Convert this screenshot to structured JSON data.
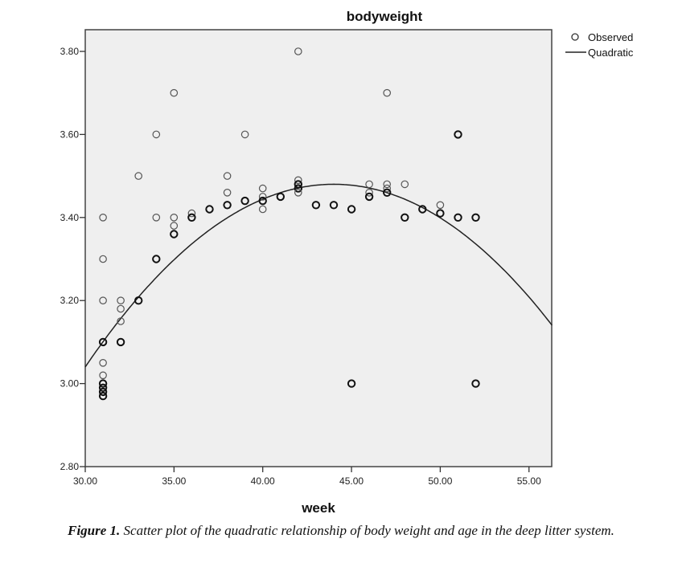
{
  "chart_data": {
    "type": "scatter",
    "title": "bodyweight",
    "xlabel": "week",
    "ylabel": "",
    "xlim": [
      30,
      56.3
    ],
    "ylim": [
      2.8,
      3.85
    ],
    "xticks": [
      30,
      35,
      40,
      45,
      50,
      55
    ],
    "xtick_labels": [
      "30.00",
      "35.00",
      "40.00",
      "45.00",
      "50.00",
      "55.00"
    ],
    "yticks": [
      2.8,
      3.0,
      3.2,
      3.4,
      3.6,
      3.8
    ],
    "ytick_labels": [
      "2.80",
      "3.00",
      "3.20",
      "3.40",
      "3.60",
      "3.80"
    ],
    "grid": false,
    "legend": {
      "placement": "top-right-outside",
      "entries": [
        {
          "label": "Observed",
          "marker": "circle"
        },
        {
          "label": "Quadratic",
          "marker": "line"
        }
      ]
    },
    "series": [
      {
        "name": "Observed",
        "type": "scatter",
        "points": [
          [
            31,
            3.4
          ],
          [
            31,
            3.3
          ],
          [
            31,
            3.2
          ],
          [
            31,
            3.1
          ],
          [
            31,
            3.05
          ],
          [
            31,
            3.02
          ],
          [
            31,
            3.0
          ],
          [
            31,
            2.99
          ],
          [
            31,
            2.98
          ],
          [
            31,
            2.97
          ],
          [
            32,
            3.2
          ],
          [
            32,
            3.18
          ],
          [
            32,
            3.15
          ],
          [
            32,
            3.1
          ],
          [
            33,
            3.5
          ],
          [
            33,
            3.2
          ],
          [
            34,
            3.6
          ],
          [
            34,
            3.4
          ],
          [
            34,
            3.3
          ],
          [
            35,
            3.7
          ],
          [
            35,
            3.4
          ],
          [
            35,
            3.38
          ],
          [
            35,
            3.36
          ],
          [
            36,
            3.41
          ],
          [
            36,
            3.4
          ],
          [
            37,
            3.42
          ],
          [
            38,
            3.5
          ],
          [
            38,
            3.46
          ],
          [
            38,
            3.43
          ],
          [
            39,
            3.6
          ],
          [
            39,
            3.44
          ],
          [
            40,
            3.47
          ],
          [
            40,
            3.45
          ],
          [
            40,
            3.44
          ],
          [
            40,
            3.42
          ],
          [
            41,
            3.45
          ],
          [
            42,
            3.8
          ],
          [
            42,
            3.49
          ],
          [
            42,
            3.48
          ],
          [
            42,
            3.47
          ],
          [
            42,
            3.46
          ],
          [
            43,
            3.43
          ],
          [
            44,
            3.43
          ],
          [
            45,
            3.42
          ],
          [
            45,
            3.0
          ],
          [
            46,
            3.48
          ],
          [
            46,
            3.46
          ],
          [
            46,
            3.45
          ],
          [
            47,
            3.7
          ],
          [
            47,
            3.48
          ],
          [
            47,
            3.47
          ],
          [
            47,
            3.46
          ],
          [
            48,
            3.48
          ],
          [
            48,
            3.4
          ],
          [
            49,
            3.42
          ],
          [
            50,
            3.43
          ],
          [
            50,
            3.41
          ],
          [
            51,
            3.6
          ],
          [
            51,
            3.4
          ],
          [
            52,
            3.4
          ],
          [
            52,
            3.0
          ]
        ],
        "bold_points": [
          [
            31,
            3.1
          ],
          [
            31,
            3.0
          ],
          [
            31,
            2.99
          ],
          [
            31,
            2.98
          ],
          [
            31,
            2.97
          ],
          [
            32,
            3.1
          ],
          [
            33,
            3.2
          ],
          [
            34,
            3.3
          ],
          [
            35,
            3.36
          ],
          [
            36,
            3.4
          ],
          [
            37,
            3.42
          ],
          [
            38,
            3.43
          ],
          [
            39,
            3.44
          ],
          [
            40,
            3.44
          ],
          [
            41,
            3.45
          ],
          [
            42,
            3.48
          ],
          [
            42,
            3.47
          ],
          [
            43,
            3.43
          ],
          [
            44,
            3.43
          ],
          [
            45,
            3.42
          ],
          [
            45,
            3.0
          ],
          [
            46,
            3.45
          ],
          [
            47,
            3.46
          ],
          [
            48,
            3.4
          ],
          [
            49,
            3.42
          ],
          [
            50,
            3.41
          ],
          [
            51,
            3.6
          ],
          [
            51,
            3.4
          ],
          [
            52,
            3.4
          ],
          [
            52,
            3.0
          ]
        ]
      },
      {
        "name": "Quadratic",
        "type": "line",
        "equation": "y = 3.48 - 0.002245*(x - 44)^2",
        "vertex": [
          44,
          3.48
        ],
        "curvature": -0.002245
      }
    ]
  },
  "caption": {
    "label": "Figure 1.",
    "text": " Scatter plot of the quadratic relationship of body weight and age in the deep litter system."
  }
}
